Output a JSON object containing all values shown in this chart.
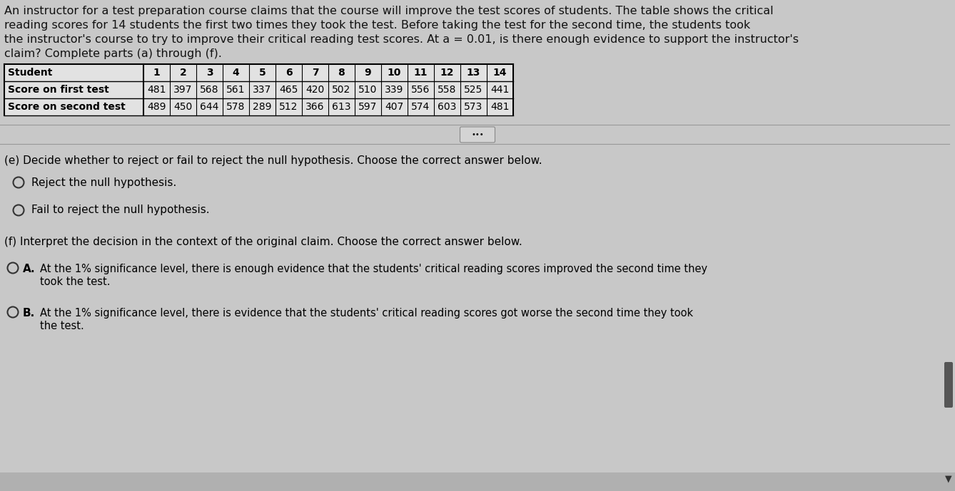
{
  "bg_color": "#c8c8c8",
  "intro_line1": "An instructor for a test preparation course claims that the course will improve the test scores of students. The table shows the critical",
  "intro_line2": "reading scores for 14 students the first two times they took the test. Before taking the test for the second time, the students took",
  "intro_line3": "the instructor's course to try to improve their critical reading test scores. At a = 0.01, is there enough evidence to support the instructor's",
  "intro_line4": "claim? Complete parts (a) through (f).",
  "table_headers": [
    "Student",
    "1",
    "2",
    "3",
    "4",
    "5",
    "6",
    "7",
    "8",
    "9",
    "10",
    "11",
    "12",
    "13",
    "14"
  ],
  "row1_label": "Score on first test",
  "row1_values": [
    "481",
    "397",
    "568",
    "561",
    "337",
    "465",
    "420",
    "502",
    "510",
    "339",
    "556",
    "558",
    "525",
    "441"
  ],
  "row2_label": "Score on second test",
  "row2_values": [
    "489",
    "450",
    "644",
    "578",
    "289",
    "512",
    "366",
    "613",
    "597",
    "407",
    "574",
    "603",
    "573",
    "481"
  ],
  "part_e_label": "(e) Decide whether to reject or fail to reject the null hypothesis. Choose the correct answer below.",
  "option_reject": "Reject the null hypothesis.",
  "option_fail": "Fail to reject the null hypothesis.",
  "part_f_label": "(f) Interpret the decision in the context of the original claim. Choose the correct answer below.",
  "option_A_label": "A.",
  "option_A_text1": "At the 1% significance level, there is enough evidence that the students' critical reading scores improved the second time they",
  "option_A_text2": "took the test.",
  "option_B_label": "B.",
  "option_B_text1": "At the 1% significance level, there is evidence that the students' critical reading scores got worse the second time they took",
  "option_B_text2": "the test.",
  "scrollbar_color": "#555555",
  "text_color": "#111111",
  "table_bg": "#d8d8d8",
  "table_border": "#000000",
  "sep_color": "#999999",
  "radio_color": "#333333"
}
